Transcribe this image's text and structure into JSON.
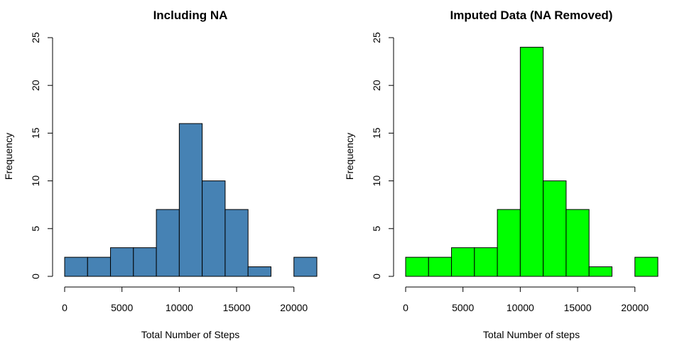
{
  "chart_data": [
    {
      "type": "bar",
      "title": "Including NA",
      "xlabel": "Total Number of Steps",
      "ylabel": "Frequency",
      "bar_color": "#4682B4",
      "bin_edges": [
        0,
        2000,
        4000,
        6000,
        8000,
        10000,
        12000,
        14000,
        16000,
        18000,
        20000,
        22000
      ],
      "values": [
        2,
        2,
        3,
        3,
        7,
        16,
        10,
        7,
        1,
        0,
        2
      ],
      "xlim": [
        0,
        22000
      ],
      "ylim": [
        0,
        25
      ],
      "x_ticks": [
        0,
        5000,
        10000,
        15000,
        20000
      ],
      "x_tick_labels": [
        "0",
        "5000",
        "10000",
        "15000",
        "20000"
      ],
      "y_ticks": [
        0,
        5,
        10,
        15,
        20,
        25
      ],
      "y_tick_labels": [
        "0",
        "5",
        "10",
        "15",
        "20",
        "25"
      ],
      "grid": false
    },
    {
      "type": "bar",
      "title": "Imputed Data (NA Removed)",
      "xlabel": "Total Number of steps",
      "ylabel": "Frequency",
      "bar_color": "#00FF00",
      "bin_edges": [
        0,
        2000,
        4000,
        6000,
        8000,
        10000,
        12000,
        14000,
        16000,
        18000,
        20000,
        22000
      ],
      "values": [
        2,
        2,
        3,
        3,
        7,
        24,
        10,
        7,
        1,
        0,
        2
      ],
      "xlim": [
        0,
        22000
      ],
      "ylim": [
        0,
        25
      ],
      "x_ticks": [
        0,
        5000,
        10000,
        15000,
        20000
      ],
      "x_tick_labels": [
        "0",
        "5000",
        "10000",
        "15000",
        "20000"
      ],
      "y_ticks": [
        0,
        5,
        10,
        15,
        20,
        25
      ],
      "y_tick_labels": [
        "0",
        "5",
        "10",
        "15",
        "20",
        "25"
      ],
      "grid": false
    }
  ]
}
